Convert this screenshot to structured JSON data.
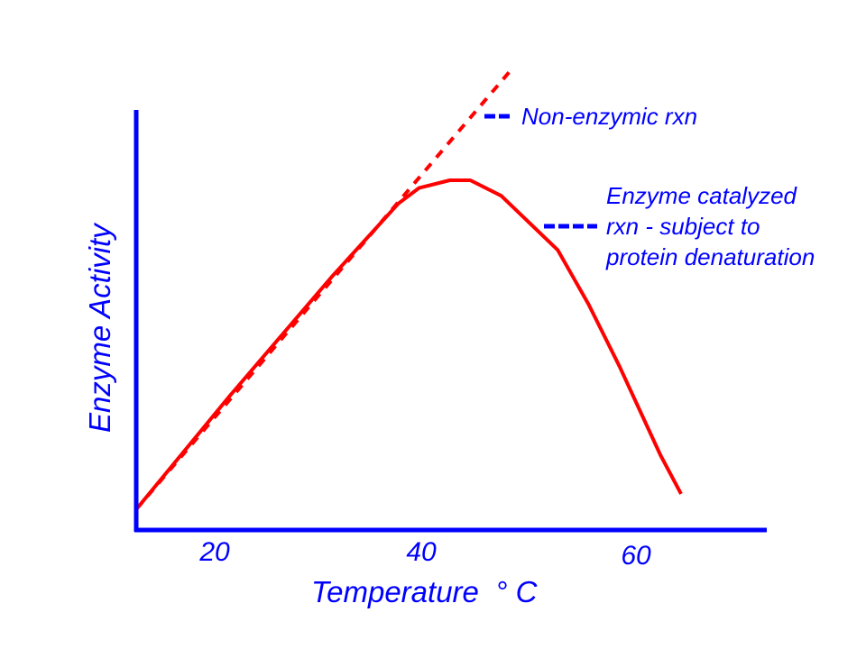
{
  "chart_data": {
    "type": "line",
    "title": "",
    "xlabel": "Temperature  ° C",
    "ylabel": "Enzyme Activity",
    "xlim": [
      11,
      70
    ],
    "ylim": [
      0,
      100
    ],
    "x_ticks": [
      20,
      40,
      60
    ],
    "y_ticks": [],
    "grid": false,
    "series": [
      {
        "name": "Non-enzymic rxn",
        "style": "dashed",
        "color": "#ff0000",
        "x": [
          11,
          47.3
        ],
        "y": [
          3,
          116
        ]
      },
      {
        "name": "Enzyme catalyzed rxn - subject to protein denaturation",
        "style": "solid",
        "color": "#ff0000",
        "x": [
          11,
          20,
          30,
          36.5,
          38.5,
          41.5,
          43.5,
          46.5,
          52,
          55,
          58,
          62,
          64
        ],
        "y": [
          3,
          32,
          63,
          82,
          86,
          88,
          88,
          84,
          70,
          56,
          40,
          17,
          7
        ]
      }
    ],
    "legend": {
      "position": "right",
      "entries": [
        {
          "lines": [
            "Non-enzymic rxn"
          ]
        },
        {
          "lines": [
            "Enzyme catalyzed",
            "rxn - subject to",
            "protein denaturation"
          ]
        }
      ]
    },
    "colors": {
      "axis": "#0000ff",
      "text": "#0000ff",
      "curve": "#ff0000"
    }
  }
}
